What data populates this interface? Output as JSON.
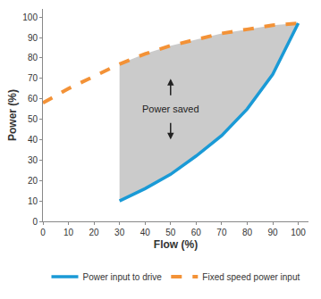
{
  "chart_data": {
    "type": "line",
    "x_label": "Flow (%)",
    "y_label": "Power (%)",
    "xlim": [
      0,
      104
    ],
    "ylim": [
      0,
      104
    ],
    "xticks": [
      0,
      10,
      20,
      30,
      40,
      50,
      60,
      70,
      80,
      90,
      100
    ],
    "yticks": [
      0,
      10,
      20,
      30,
      40,
      50,
      60,
      70,
      80,
      90,
      100
    ],
    "grid": false,
    "legend": "bottom",
    "series": [
      {
        "name": "Fixed speed power input",
        "color": "#f39237",
        "line_style": "dashed",
        "x": [
          0,
          10,
          20,
          30,
          40,
          50,
          60,
          70,
          80,
          90,
          100
        ],
        "values": [
          58,
          65,
          71,
          77,
          82,
          86,
          89,
          92,
          94,
          96,
          97
        ]
      },
      {
        "name": "Power input to drive",
        "color": "#1a9ad6",
        "line_style": "solid",
        "x": [
          30,
          40,
          50,
          60,
          70,
          80,
          90,
          100
        ],
        "values": [
          10,
          16,
          23,
          32,
          42,
          55,
          72,
          97
        ]
      }
    ],
    "annotations": [
      {
        "text": "Power saved",
        "x": 50,
        "y": 55
      }
    ]
  }
}
